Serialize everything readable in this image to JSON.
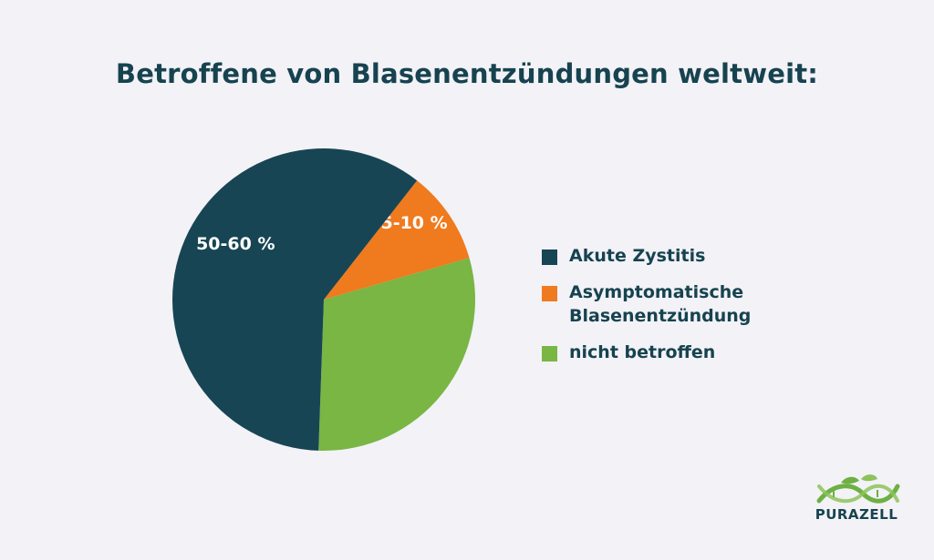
{
  "chart_data": {
    "type": "pie",
    "title": "Betroffene von Blasenentzündungen weltweit:",
    "categories": [
      "Akute Zystitis",
      "Asymptomatische Blasenentzündung",
      "nicht betroffen"
    ],
    "values": [
      60,
      10,
      30
    ],
    "slice_labels": [
      "50-60 %",
      "5-10 %",
      ""
    ],
    "colors": [
      "#174554",
      "#f07a1e",
      "#79b644"
    ],
    "legend": "right"
  },
  "logo": {
    "text": "PURAZELL",
    "icon": "dna-leaf-logo-icon",
    "color": "#6eb043"
  }
}
